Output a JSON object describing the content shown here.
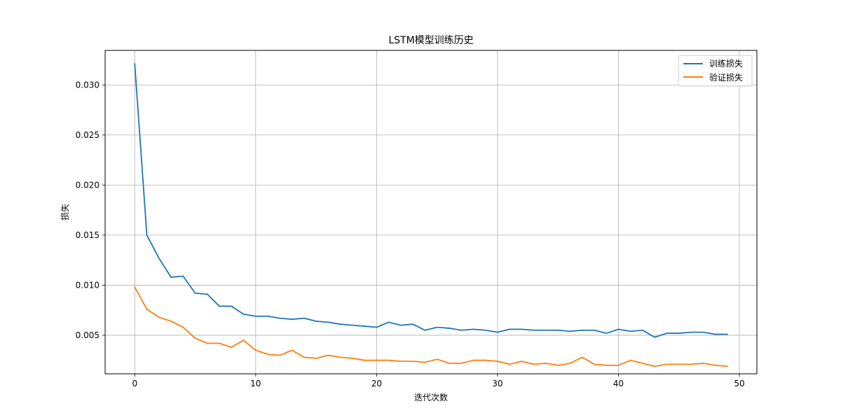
{
  "chart_data": {
    "type": "line",
    "title": "LSTM模型训练历史",
    "xlabel": "迭代次数",
    "ylabel": "损失",
    "xlim": [
      -2.45,
      51.45
    ],
    "ylim": [
      0.00115,
      0.03345
    ],
    "xticks": [
      0,
      10,
      20,
      30,
      40,
      50
    ],
    "yticks": [
      0.005,
      0.01,
      0.015,
      0.02,
      0.025,
      0.03
    ],
    "ytick_labels": [
      "0.005",
      "0.010",
      "0.015",
      "0.020",
      "0.025",
      "0.030"
    ],
    "grid": true,
    "legend_position": "top-right",
    "x": [
      0,
      1,
      2,
      3,
      4,
      5,
      6,
      7,
      8,
      9,
      10,
      11,
      12,
      13,
      14,
      15,
      16,
      17,
      18,
      19,
      20,
      21,
      22,
      23,
      24,
      25,
      26,
      27,
      28,
      29,
      30,
      31,
      32,
      33,
      34,
      35,
      36,
      37,
      38,
      39,
      40,
      41,
      42,
      43,
      44,
      45,
      46,
      47,
      48,
      49
    ],
    "series": [
      {
        "name": "训练损失",
        "color": "#1f77b4",
        "values": [
          0.0321,
          0.015,
          0.0127,
          0.0108,
          0.0109,
          0.0092,
          0.0091,
          0.0079,
          0.0079,
          0.0071,
          0.0069,
          0.0069,
          0.0067,
          0.0066,
          0.0067,
          0.0064,
          0.0063,
          0.0061,
          0.006,
          0.0059,
          0.0058,
          0.0063,
          0.006,
          0.0061,
          0.0055,
          0.0058,
          0.0057,
          0.0055,
          0.0056,
          0.0055,
          0.0053,
          0.0056,
          0.0056,
          0.0055,
          0.0055,
          0.0055,
          0.0054,
          0.0055,
          0.0055,
          0.0052,
          0.0056,
          0.0054,
          0.0055,
          0.0048,
          0.0052,
          0.0052,
          0.0053,
          0.0053,
          0.0051,
          0.0051
        ]
      },
      {
        "name": "验证损失",
        "color": "#ff7f0e",
        "values": [
          0.0098,
          0.0076,
          0.0068,
          0.0064,
          0.0058,
          0.0047,
          0.0042,
          0.0042,
          0.0038,
          0.0045,
          0.0035,
          0.0031,
          0.003,
          0.0035,
          0.0028,
          0.0027,
          0.003,
          0.0028,
          0.0027,
          0.0025,
          0.0025,
          0.0025,
          0.0024,
          0.0024,
          0.0023,
          0.0026,
          0.0022,
          0.0022,
          0.0025,
          0.0025,
          0.0024,
          0.0021,
          0.0024,
          0.0021,
          0.0022,
          0.002,
          0.0022,
          0.0028,
          0.0021,
          0.002,
          0.002,
          0.0025,
          0.0022,
          0.0019,
          0.0021,
          0.0021,
          0.0021,
          0.0022,
          0.002,
          0.0019
        ]
      }
    ]
  }
}
